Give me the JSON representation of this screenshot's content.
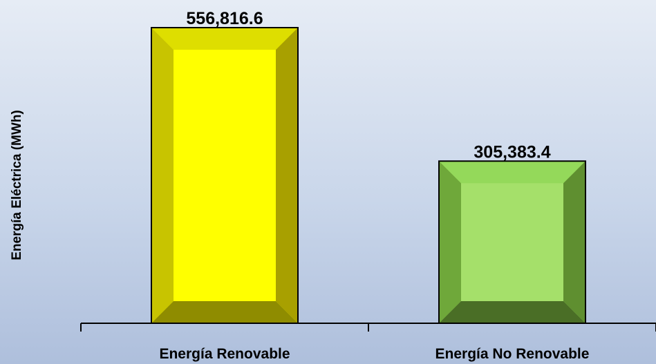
{
  "chart_data": {
    "type": "bar",
    "title": "",
    "xlabel": "",
    "ylabel": "Energía Eléctrica (MWh)",
    "categories": [
      "Energía Renovable",
      "Energía No Renovable"
    ],
    "values": [
      556816.6,
      305383.4
    ],
    "value_labels": [
      "556,816.6",
      "305,383.4"
    ],
    "ylim": [
      0,
      556816.6
    ],
    "grid": false,
    "legend": "none",
    "colors": [
      {
        "face": "#ffff00",
        "left": "#c8c400",
        "right": "#a8a000",
        "top": "#dede00",
        "bottom": "#8f8c00"
      },
      {
        "face": "#a5e06a",
        "left": "#6fa83a",
        "right": "#5f8f30",
        "top": "#94d95a",
        "bottom": "#4a6e26"
      }
    ]
  }
}
